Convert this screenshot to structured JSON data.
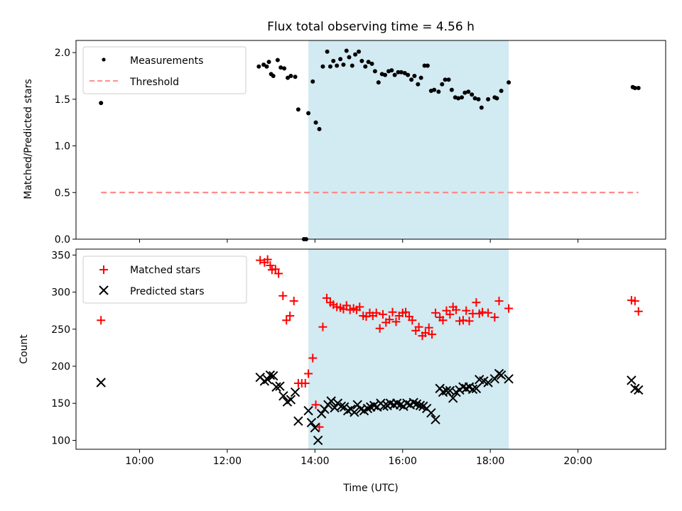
{
  "chart_data": [
    {
      "type": "scatter",
      "title": "Flux total observing time = 4.56 h",
      "ylabel": "Matched/Predicted stars",
      "xlim": [
        8.55,
        22.0
      ],
      "ylim": [
        0,
        2.13
      ],
      "yticks": [
        0.0,
        0.5,
        1.0,
        1.5,
        2.0
      ],
      "ytick_labels": [
        "0.0",
        "0.5",
        "1.0",
        "1.5",
        "2.0"
      ],
      "shaded_span": {
        "x": [
          13.85,
          18.42
        ],
        "color": "#add8e6"
      },
      "legend_position": "top-left",
      "series": [
        {
          "name": "Measurements",
          "marker": "dot",
          "color": "#000000",
          "x": [
            9.12,
            12.72,
            12.83,
            12.9,
            12.95,
            13.0,
            13.05,
            13.15,
            13.22,
            13.3,
            13.38,
            13.45,
            13.55,
            13.62,
            13.75,
            13.8,
            13.85,
            13.95,
            14.02,
            14.1,
            14.18,
            14.28,
            14.35,
            14.42,
            14.5,
            14.58,
            14.65,
            14.72,
            14.78,
            14.85,
            14.92,
            15.0,
            15.07,
            15.15,
            15.22,
            15.3,
            15.37,
            15.45,
            15.53,
            15.6,
            15.68,
            15.75,
            15.82,
            15.9,
            15.97,
            16.05,
            16.12,
            16.2,
            16.27,
            16.35,
            16.42,
            16.5,
            16.57,
            16.65,
            16.72,
            16.82,
            16.9,
            16.97,
            17.05,
            17.12,
            17.2,
            17.27,
            17.35,
            17.42,
            17.5,
            17.58,
            17.65,
            17.73,
            17.8,
            17.95,
            18.1,
            18.15,
            18.25,
            18.42,
            21.25,
            21.3,
            21.38
          ],
          "y": [
            1.46,
            1.85,
            1.87,
            1.85,
            1.9,
            1.77,
            1.75,
            1.92,
            1.84,
            1.83,
            1.73,
            1.75,
            1.74,
            1.39,
            0.0,
            0.0,
            1.35,
            1.69,
            1.25,
            1.18,
            1.85,
            2.01,
            1.85,
            1.91,
            1.86,
            1.93,
            1.87,
            2.02,
            1.95,
            1.86,
            1.98,
            2.01,
            1.91,
            1.85,
            1.9,
            1.88,
            1.8,
            1.68,
            1.77,
            1.76,
            1.8,
            1.81,
            1.76,
            1.79,
            1.79,
            1.78,
            1.76,
            1.71,
            1.75,
            1.66,
            1.73,
            1.86,
            1.86,
            1.59,
            1.6,
            1.58,
            1.66,
            1.71,
            1.71,
            1.6,
            1.52,
            1.51,
            1.52,
            1.57,
            1.58,
            1.55,
            1.51,
            1.5,
            1.41,
            1.5,
            1.52,
            1.51,
            1.59,
            1.68,
            1.63,
            1.62,
            1.62
          ]
        },
        {
          "name": "Threshold",
          "marker": "dashed-line",
          "color": "#ff7f7f",
          "x": [
            9.12,
            21.38
          ],
          "y": [
            0.5,
            0.5
          ]
        }
      ]
    },
    {
      "type": "scatter",
      "xlabel": "Time (UTC)",
      "ylabel": "Count",
      "xlim": [
        8.55,
        22.0
      ],
      "ylim": [
        88,
        358
      ],
      "xticks": [
        10,
        12,
        14,
        16,
        18,
        20
      ],
      "xtick_labels": [
        "10:00",
        "12:00",
        "14:00",
        "16:00",
        "18:00",
        "20:00"
      ],
      "yticks": [
        100,
        150,
        200,
        250,
        300,
        350
      ],
      "ytick_labels": [
        "100",
        "150",
        "200",
        "250",
        "300",
        "350"
      ],
      "shaded_span": {
        "x": [
          13.85,
          18.42
        ],
        "color": "#add8e6"
      },
      "legend_position": "top-left",
      "series": [
        {
          "name": "Matched stars",
          "marker": "plus",
          "color": "#ff0000",
          "x": [
            9.12,
            12.75,
            12.85,
            12.92,
            12.98,
            13.02,
            13.1,
            13.17,
            13.27,
            13.35,
            13.43,
            13.52,
            13.62,
            13.7,
            13.78,
            13.85,
            13.95,
            14.02,
            14.1,
            14.18,
            14.27,
            14.35,
            14.42,
            14.5,
            14.58,
            14.65,
            14.72,
            14.8,
            14.88,
            14.95,
            15.02,
            15.1,
            15.17,
            15.25,
            15.32,
            15.4,
            15.48,
            15.55,
            15.62,
            15.7,
            15.77,
            15.85,
            15.92,
            16.0,
            16.07,
            16.15,
            16.22,
            16.3,
            16.37,
            16.45,
            16.52,
            16.6,
            16.67,
            16.75,
            16.85,
            16.92,
            17.0,
            17.08,
            17.15,
            17.22,
            17.3,
            17.38,
            17.45,
            17.52,
            17.6,
            17.68,
            17.75,
            17.82,
            17.95,
            18.1,
            18.2,
            18.42,
            21.22,
            21.3,
            21.38
          ],
          "y": [
            262,
            343,
            340,
            344,
            336,
            330,
            331,
            325,
            295,
            262,
            268,
            288,
            177,
            177,
            177,
            190,
            211,
            148,
            118,
            253,
            292,
            286,
            283,
            280,
            279,
            277,
            282,
            276,
            278,
            276,
            280,
            268,
            267,
            272,
            268,
            272,
            251,
            270,
            259,
            263,
            273,
            260,
            268,
            272,
            273,
            267,
            262,
            248,
            253,
            241,
            245,
            252,
            243,
            272,
            266,
            262,
            275,
            270,
            280,
            276,
            261,
            262,
            275,
            261,
            271,
            286,
            271,
            273,
            272,
            266,
            288,
            278,
            289,
            288,
            274
          ]
        },
        {
          "name": "Predicted stars",
          "marker": "x",
          "color": "#000000",
          "x": [
            9.12,
            12.75,
            12.85,
            12.92,
            12.98,
            13.05,
            13.12,
            13.2,
            13.28,
            13.37,
            13.45,
            13.55,
            13.62,
            13.85,
            13.92,
            14.0,
            14.07,
            14.15,
            14.22,
            14.3,
            14.37,
            14.45,
            14.52,
            14.6,
            14.67,
            14.75,
            14.82,
            14.9,
            14.97,
            15.05,
            15.12,
            15.2,
            15.27,
            15.35,
            15.42,
            15.5,
            15.57,
            15.65,
            15.72,
            15.8,
            15.87,
            15.95,
            16.02,
            16.1,
            16.17,
            16.25,
            16.32,
            16.4,
            16.47,
            16.55,
            16.65,
            16.75,
            16.85,
            16.92,
            17.0,
            17.08,
            17.15,
            17.22,
            17.3,
            17.38,
            17.45,
            17.52,
            17.6,
            17.68,
            17.75,
            17.85,
            17.95,
            18.1,
            18.2,
            18.25,
            18.42,
            21.22,
            21.3,
            21.38
          ],
          "y": [
            178,
            185,
            180,
            182,
            188,
            187,
            172,
            173,
            160,
            152,
            155,
            165,
            126,
            140,
            124,
            117,
            100,
            136,
            142,
            148,
            153,
            144,
            150,
            146,
            145,
            140,
            142,
            138,
            148,
            142,
            140,
            143,
            145,
            147,
            145,
            150,
            146,
            147,
            150,
            148,
            150,
            148,
            146,
            150,
            148,
            151,
            149,
            147,
            146,
            143,
            137,
            128,
            170,
            165,
            167,
            167,
            157,
            165,
            168,
            172,
            170,
            172,
            169,
            170,
            182,
            180,
            178,
            183,
            190,
            188,
            183,
            181,
            170,
            168
          ]
        }
      ]
    }
  ]
}
